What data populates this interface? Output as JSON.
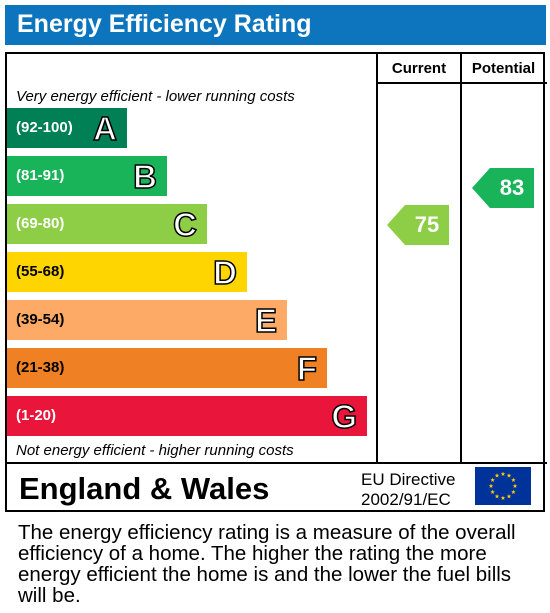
{
  "title": "Energy Efficiency Rating",
  "columns": {
    "current": "Current",
    "potential": "Potential"
  },
  "top_note": "Very energy efficient - lower running costs",
  "bottom_note": "Not energy efficient - higher running costs",
  "bands": [
    {
      "range": "(92-100)",
      "letter": "A",
      "color": "#008054"
    },
    {
      "range": "(81-91)",
      "letter": "B",
      "color": "#19b459"
    },
    {
      "range": "(69-80)",
      "letter": "C",
      "color": "#8dce46"
    },
    {
      "range": "(55-68)",
      "letter": "D",
      "color": "#ffd500"
    },
    {
      "range": "(39-54)",
      "letter": "E",
      "color": "#fcaa65"
    },
    {
      "range": "(21-38)",
      "letter": "F",
      "color": "#ef8023"
    },
    {
      "range": "(1-20)",
      "letter": "G",
      "color": "#e9153b"
    }
  ],
  "current": {
    "value": "75",
    "band": "C",
    "color": "#8dce46"
  },
  "potential": {
    "value": "83",
    "band": "B",
    "color": "#19b459"
  },
  "region": "England & Wales",
  "directive": {
    "line1": "EU Directive",
    "line2": "2002/91/EC"
  },
  "description": "The energy efficiency rating is a measure of the overall efficiency of a home. The higher the rating the more energy efficient the home is and the lower the fuel bills will be.",
  "icons": {
    "flag": "eu-flag-icon"
  }
}
